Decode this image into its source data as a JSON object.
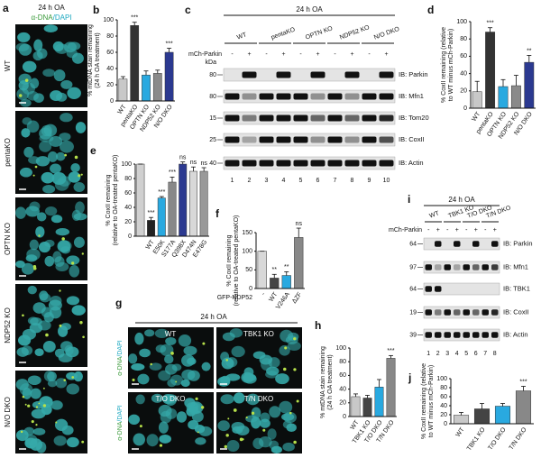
{
  "micrographs_a": {
    "panel_label": "a",
    "title": "24 h OA",
    "stain": [
      "α-DNA",
      "/DAPI"
    ],
    "rows": [
      "WT",
      "pentaKO",
      "OPTN KO",
      "NDP52 KO",
      "N/O DKO"
    ]
  },
  "blot_c": {
    "panel_label": "c",
    "title": "24 h OA",
    "lanes_header": [
      "WT",
      "pentaKO",
      "OPTN KO",
      "NDP52 KO",
      "N/O DKO"
    ],
    "parkin_label": "mCh-Parkin",
    "signs": [
      "-",
      "+",
      "-",
      "+",
      "-",
      "+",
      "-",
      "+",
      "-",
      "+"
    ],
    "kda": "kDa",
    "markers": [
      80,
      80,
      15,
      25,
      40
    ],
    "ib": [
      "IB: Parkin",
      "IB: Mfn1",
      "IB: Tom20",
      "IB: CoxII",
      "IB: Actin"
    ],
    "lane_numbers": [
      1,
      2,
      3,
      4,
      5,
      6,
      7,
      8,
      9,
      10
    ]
  },
  "micrographs_g": {
    "panel_label": "g",
    "title": "24 h OA",
    "stain": [
      "α-DNA",
      "/DAPI"
    ],
    "images": [
      "WT",
      "TBK1 KO",
      "T/O DKO",
      "T/N DKO"
    ]
  },
  "blot_i": {
    "panel_label": "i",
    "title": "24 h OA",
    "lanes_header": [
      "WT",
      "TBK1 KO",
      "T/O DKO",
      "T/N DKO"
    ],
    "parkin_label": "mCh-Parkin",
    "signs": [
      "-",
      "+",
      "-",
      "+",
      "-",
      "+",
      "-",
      "+"
    ],
    "markers": [
      64,
      97,
      64,
      19,
      39
    ],
    "ib": [
      "IB: Parkin",
      "IB: Mfn1",
      "IB: TBK1",
      "IB: CoxII",
      "IB: Actin"
    ],
    "lane_numbers": [
      1,
      2,
      3,
      4,
      5,
      6,
      7,
      8
    ]
  },
  "chart_data": [
    {
      "type": "bar",
      "panel_label": "b",
      "ylabel": [
        "% mtDNA stain remaining",
        "(24 h OA treatment)"
      ],
      "categories": [
        "WT",
        "pentaKO",
        "OPTN KO",
        "NDP52 KO",
        "N/O DKO"
      ],
      "values": [
        27,
        93,
        32,
        34,
        60
      ],
      "errors": [
        3,
        4,
        5,
        4,
        5
      ],
      "colors": [
        "#c8c8c8",
        "#333333",
        "#29a9e0",
        "#8a8a8a",
        "#2b3990"
      ],
      "annotations": [
        null,
        "***",
        null,
        null,
        "***"
      ],
      "ylim": [
        0,
        100
      ],
      "yticks": [
        0,
        20,
        40,
        60,
        80,
        100
      ]
    },
    {
      "type": "bar",
      "panel_label": "d",
      "ylabel": [
        "% CoxII remaining (relative",
        "to WT minus mCh-Parkin)"
      ],
      "categories": [
        "WT",
        "pentaKO",
        "OPTN KO",
        "NDP52 KO",
        "N/O DKO"
      ],
      "values": [
        19,
        88,
        25,
        26,
        53
      ],
      "errors": [
        12,
        5,
        8,
        12,
        8
      ],
      "colors": [
        "#c8c8c8",
        "#333333",
        "#29a9e0",
        "#8a8a8a",
        "#2b3990"
      ],
      "annotations": [
        null,
        "***",
        null,
        null,
        "**"
      ],
      "ylim": [
        0,
        100
      ],
      "yticks": [
        0,
        20,
        40,
        60,
        80,
        100
      ]
    },
    {
      "type": "bar",
      "panel_label": "e",
      "ylabel": [
        "% CoxII remaining",
        "(relative to OA-treated pentaKO)"
      ],
      "categories": [
        null,
        "WT",
        "E50K",
        "S177A",
        "Q398X",
        "D474N",
        "E478G"
      ],
      "values": [
        100,
        22,
        53,
        75,
        100,
        90,
        90
      ],
      "errors": [
        0,
        4,
        2,
        7,
        3,
        6,
        5
      ],
      "colors": [
        "#d0d0d0",
        "#222222",
        "#29a9e0",
        "#888888",
        "#2b3990",
        "#d8d8d8",
        "#999999"
      ],
      "annotations": [
        null,
        "***",
        "***",
        "***",
        "ns",
        "ns",
        "ns"
      ],
      "ylim": [
        0,
        100
      ],
      "yticks": [
        0,
        20,
        40,
        60,
        80,
        100
      ]
    },
    {
      "type": "bar",
      "panel_label": "f",
      "ylabel": [
        "% CoxII remaining",
        "(relative to OA-treated pentaKO)"
      ],
      "xlabel": "GFP-NDP52",
      "categories": [
        "-",
        "WT",
        "V246A",
        "ΔZF"
      ],
      "values": [
        100,
        28,
        35,
        137
      ],
      "errors": [
        0,
        10,
        10,
        25
      ],
      "colors": [
        "#d8d8d8",
        "#444444",
        "#29a9e0",
        "#888888"
      ],
      "annotations": [
        null,
        "**",
        "**",
        "ns"
      ],
      "ylim": [
        0,
        150
      ],
      "yticks": [
        0,
        50,
        100,
        150
      ]
    },
    {
      "type": "bar",
      "panel_label": "h",
      "ylabel": [
        "% mtDNA stain remaining",
        "(24 h OA treatment)"
      ],
      "categories": [
        "WT",
        "TBK1 KO",
        "T/O DKO",
        "T/N DKO"
      ],
      "values": [
        29,
        27,
        43,
        85
      ],
      "errors": [
        4,
        4,
        11,
        4
      ],
      "colors": [
        "#c8c8c8",
        "#444444",
        "#29a9e0",
        "#888888"
      ],
      "annotations": [
        null,
        null,
        null,
        "***"
      ],
      "ylim": [
        0,
        100
      ],
      "yticks": [
        0,
        20,
        40,
        60,
        80,
        100
      ]
    },
    {
      "type": "bar",
      "panel_label": "j",
      "ylabel": [
        "% CoxII remaining (relative",
        "to WT minus mCh-Parkin)"
      ],
      "categories": [
        "WT",
        "TBK1 KO",
        "T/O DKO",
        "T/N DKO"
      ],
      "values": [
        19,
        33,
        39,
        73
      ],
      "errors": [
        6,
        12,
        6,
        10
      ],
      "colors": [
        "#c8c8c8",
        "#444444",
        "#29a9e0",
        "#888888"
      ],
      "annotations": [
        null,
        null,
        null,
        "***"
      ],
      "ylim": [
        0,
        100
      ],
      "yticks": [
        0,
        20,
        40,
        60,
        80,
        100
      ]
    }
  ]
}
